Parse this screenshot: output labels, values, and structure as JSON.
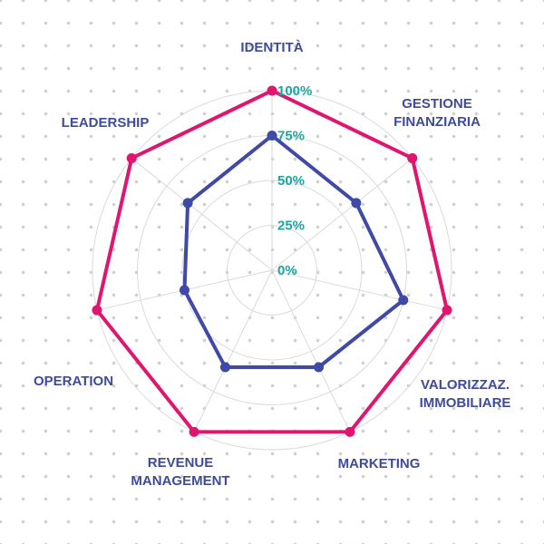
{
  "chart_data": {
    "type": "radar",
    "axes": [
      [
        "IDENTITÀ"
      ],
      [
        "GESTIONE",
        "FINANZIARIA"
      ],
      [
        "VALORIZZAZ.",
        "IMMOBILIARE"
      ],
      [
        "MARKETING"
      ],
      [
        "REVENUE",
        "MANAGEMENT"
      ],
      [
        "OPERATION"
      ],
      [
        "LEADERSHIP"
      ]
    ],
    "ticks": [
      "0%",
      "25%",
      "50%",
      "75%",
      "100%"
    ],
    "rlim": [
      0,
      100
    ],
    "series": [
      {
        "values": [
          100,
          100,
          100,
          100,
          100,
          100,
          100
        ],
        "color": "#e0156f"
      },
      {
        "values": [
          75,
          60,
          75,
          60,
          60,
          50,
          60
        ],
        "color": "#3e4aa6"
      }
    ],
    "grid": true
  }
}
